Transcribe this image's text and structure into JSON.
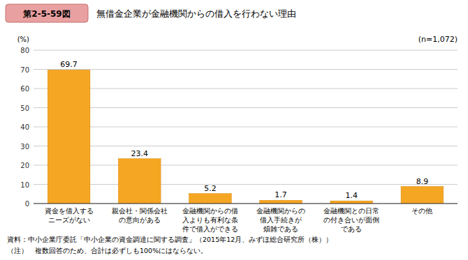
{
  "chart_data": {
    "type": "bar",
    "title": "無借金企業が金融機関からの借入を行わない理由",
    "annotations": [
      "第2-5-59図",
      "(n=1,072)",
      "資料：中小企業庁委託「中小企業の資金調達に関する調査」（2015年12月、みずほ総合研究所（株））",
      "（注）　複数回答のため、合計は必ずしも100%にはならない。"
    ],
    "ylabel": "(%)",
    "categories": [
      "資金を借入する\nニーズがない",
      "親会社・関係会社\nの意向がある",
      "金融機関からの借\n入よりも有利な条\n件で借入ができる",
      "金融機関からの\n借入手続きが\n煩雑である",
      "金融機関との日常\nの付き合いが面倒\nである",
      "その他"
    ],
    "values": [
      69.7,
      23.4,
      5.2,
      1.7,
      1.4,
      8.9
    ],
    "color": "#F5A623",
    "ylim": [
      0,
      80
    ],
    "yticks": [
      0,
      10,
      20,
      30,
      40,
      50,
      60,
      70,
      80
    ],
    "grid": true,
    "data_labels": true
  }
}
